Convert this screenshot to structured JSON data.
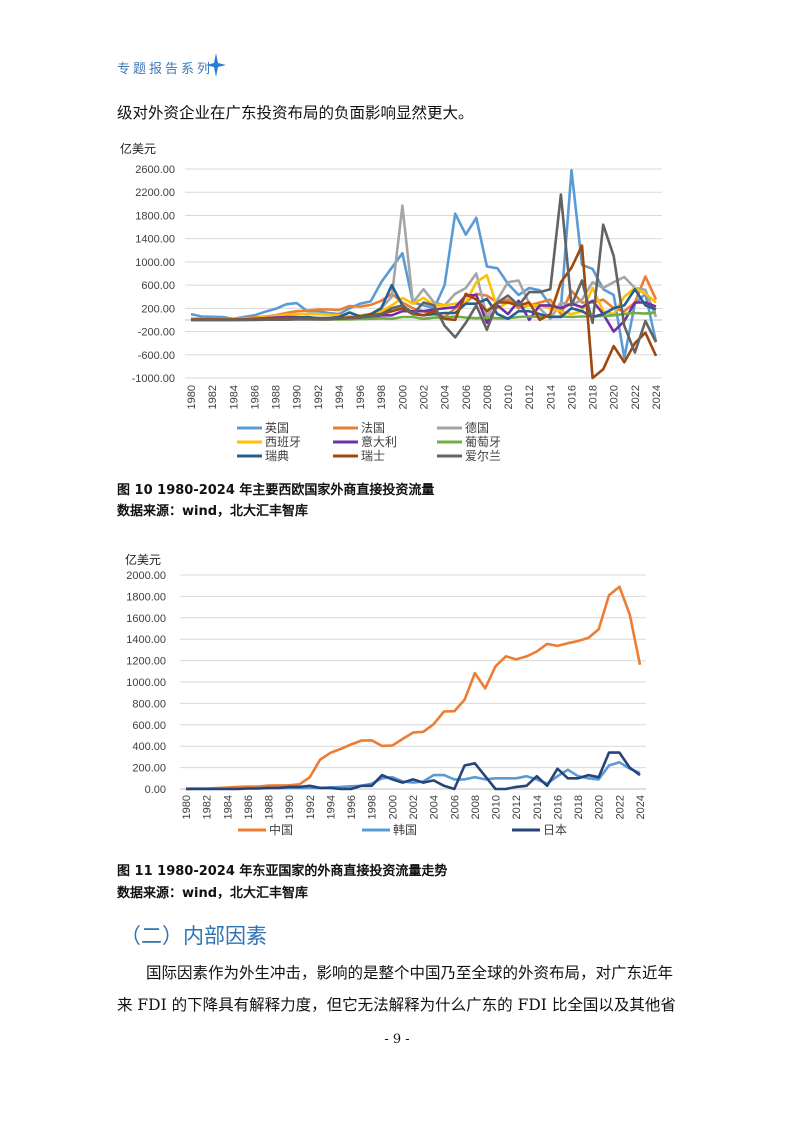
{
  "header": {
    "series_label": "专题报告系列",
    "icon": "four-point-star-icon",
    "color": "#3d7ab8"
  },
  "intro_line": "级对外资企业在广东投资布局的负面影响显然更大。",
  "figure10": {
    "caption": "图 10 1980-2024 年主要西欧国家外商直接投资流量",
    "source": "数据来源：wind，北大汇丰智库"
  },
  "figure11": {
    "caption": "图 11 1980-2024 年东亚国家的外商直接投资流量走势",
    "source": "数据来源：wind，北大汇丰智库"
  },
  "section": {
    "heading": "（二）内部因素",
    "color": "#2e74b5",
    "paragraph_lines": [
      "国际因素作为外生冲击，影响的是整个中国乃至全球的外资布局，对广东近年",
      "来 FDI 的下降具有解释力度，但它无法解释为什么广东的 FDI 比全国以及其他省"
    ]
  },
  "page_number": "- 9 -",
  "chart_data": [
    {
      "type": "line",
      "ylabel": "亿美元",
      "ylim": [
        -1000,
        2600
      ],
      "yticks": [
        "2600.00",
        "2200.00",
        "1800.00",
        "1400.00",
        "1000.00",
        "600.00",
        "200.00",
        "-200.00",
        "-600.00",
        "-1000.00"
      ],
      "ytick_values": [
        2600,
        2200,
        1800,
        1400,
        1000,
        600,
        200,
        -200,
        -600,
        -1000
      ],
      "x": [
        1980,
        1981,
        1982,
        1983,
        1984,
        1985,
        1986,
        1987,
        1988,
        1989,
        1990,
        1991,
        1992,
        1993,
        1994,
        1995,
        1996,
        1997,
        1998,
        1999,
        2000,
        2001,
        2002,
        2003,
        2004,
        2005,
        2006,
        2007,
        2008,
        2009,
        2010,
        2011,
        2012,
        2013,
        2014,
        2015,
        2016,
        2017,
        2018,
        2019,
        2020,
        2021,
        2022,
        2023,
        2024
      ],
      "xtick_labels": [
        "1980",
        "1982",
        "1984",
        "1986",
        "1988",
        "1990",
        "1992",
        "1994",
        "1996",
        "1998",
        "2000",
        "2002",
        "2004",
        "2006",
        "2008",
        "2010",
        "2012",
        "2014",
        "2016",
        "2018",
        "2020",
        "2022",
        "2024"
      ],
      "grid": true,
      "legend_position": "bottom",
      "series": [
        {
          "name": "英国",
          "color": "#5b9bd5",
          "values": [
            100,
            60,
            55,
            50,
            20,
            50,
            80,
            140,
            190,
            270,
            290,
            150,
            150,
            120,
            100,
            200,
            280,
            320,
            650,
            900,
            1150,
            300,
            250,
            200,
            600,
            1830,
            1470,
            1760,
            920,
            890,
            620,
            430,
            550,
            510,
            250,
            200,
            2580,
            950,
            880,
            530,
            430,
            -650,
            280,
            450,
            -380
          ]
        },
        {
          "name": "法国",
          "color": "#ed7d31",
          "values": [
            20,
            20,
            20,
            20,
            20,
            30,
            40,
            60,
            80,
            120,
            150,
            160,
            180,
            180,
            170,
            240,
            230,
            260,
            330,
            450,
            300,
            200,
            150,
            100,
            50,
            200,
            300,
            450,
            420,
            300,
            350,
            200,
            250,
            300,
            350,
            100,
            500,
            300,
            300,
            350,
            200,
            150,
            300,
            750,
            350
          ]
        },
        {
          "name": "德国",
          "color": "#a5a5a5",
          "values": [
            10,
            10,
            10,
            10,
            10,
            10,
            20,
            20,
            30,
            30,
            40,
            40,
            30,
            20,
            30,
            40,
            60,
            100,
            200,
            400,
            1970,
            300,
            530,
            300,
            250,
            450,
            550,
            800,
            50,
            350,
            650,
            680,
            280,
            200,
            20,
            300,
            250,
            350,
            650,
            550,
            650,
            740,
            550,
            520,
            50
          ]
        },
        {
          "name": "西班牙",
          "color": "#ffc000",
          "values": [
            10,
            10,
            10,
            10,
            15,
            20,
            30,
            50,
            70,
            90,
            100,
            100,
            100,
            90,
            80,
            60,
            80,
            100,
            150,
            250,
            380,
            280,
            380,
            250,
            250,
            280,
            300,
            650,
            770,
            200,
            300,
            250,
            250,
            250,
            200,
            150,
            100,
            150,
            550,
            150,
            100,
            400,
            550,
            450,
            300
          ]
        },
        {
          "name": "意大利",
          "color": "#7030a0",
          "values": [
            5,
            5,
            5,
            5,
            5,
            10,
            20,
            30,
            40,
            50,
            50,
            40,
            30,
            30,
            30,
            40,
            40,
            50,
            80,
            80,
            150,
            150,
            150,
            180,
            200,
            220,
            420,
            430,
            -50,
            250,
            100,
            330,
            0,
            250,
            250,
            200,
            280,
            220,
            330,
            100,
            -200,
            -20,
            300,
            300,
            230
          ]
        },
        {
          "name": "葡萄牙",
          "color": "#70ad47",
          "values": [
            0,
            0,
            0,
            0,
            0,
            0,
            5,
            5,
            10,
            10,
            15,
            15,
            10,
            10,
            10,
            10,
            15,
            20,
            30,
            20,
            50,
            50,
            20,
            40,
            40,
            60,
            40,
            30,
            40,
            30,
            30,
            50,
            60,
            50,
            60,
            60,
            50,
            60,
            60,
            70,
            80,
            100,
            120,
            110,
            130
          ]
        },
        {
          "name": "瑞典",
          "color": "#255e91",
          "values": [
            0,
            0,
            0,
            0,
            0,
            5,
            10,
            10,
            20,
            30,
            40,
            50,
            30,
            30,
            50,
            130,
            60,
            100,
            200,
            600,
            250,
            120,
            80,
            100,
            120,
            120,
            280,
            280,
            360,
            100,
            20,
            150,
            150,
            100,
            50,
            50,
            200,
            150,
            50,
            100,
            200,
            250,
            530,
            250,
            180
          ]
        },
        {
          "name": "瑞士",
          "color": "#9e480e",
          "values": [
            10,
            10,
            10,
            10,
            10,
            10,
            15,
            20,
            25,
            30,
            30,
            30,
            30,
            30,
            30,
            40,
            50,
            80,
            100,
            150,
            200,
            100,
            80,
            150,
            20,
            0,
            450,
            350,
            150,
            300,
            300,
            250,
            300,
            0,
            100,
            650,
            900,
            1280,
            -1000,
            -850,
            -450,
            -730,
            -400,
            -220,
            -620
          ]
        },
        {
          "name": "爱尔兰",
          "color": "#636363",
          "values": [
            0,
            0,
            0,
            0,
            0,
            0,
            0,
            5,
            5,
            5,
            10,
            10,
            10,
            10,
            20,
            30,
            40,
            60,
            100,
            200,
            250,
            100,
            300,
            250,
            -100,
            -300,
            -50,
            250,
            -170,
            300,
            420,
            250,
            480,
            480,
            530,
            2160,
            250,
            680,
            -50,
            1640,
            1100,
            -100,
            -560,
            -20,
            -380
          ]
        }
      ]
    },
    {
      "type": "line",
      "ylabel": "亿美元",
      "ylim": [
        0,
        2000
      ],
      "yticks": [
        "2000.00",
        "1800.00",
        "1600.00",
        "1400.00",
        "1200.00",
        "1000.00",
        "800.00",
        "600.00",
        "400.00",
        "200.00",
        "0.00"
      ],
      "ytick_values": [
        2000,
        1800,
        1600,
        1400,
        1200,
        1000,
        800,
        600,
        400,
        200,
        0
      ],
      "x": [
        1980,
        1981,
        1982,
        1983,
        1984,
        1985,
        1986,
        1987,
        1988,
        1989,
        1990,
        1991,
        1992,
        1993,
        1994,
        1995,
        1996,
        1997,
        1998,
        1999,
        2000,
        2001,
        2002,
        2003,
        2004,
        2005,
        2006,
        2007,
        2008,
        2009,
        2010,
        2011,
        2012,
        2013,
        2014,
        2015,
        2016,
        2017,
        2018,
        2019,
        2020,
        2021,
        2022,
        2023,
        2024
      ],
      "xtick_labels": [
        "1980",
        "1982",
        "1984",
        "1986",
        "1988",
        "1990",
        "1992",
        "1994",
        "1996",
        "1998",
        "2000",
        "2002",
        "2004",
        "2006",
        "2008",
        "2010",
        "2012",
        "2014",
        "2016",
        "2018",
        "2020",
        "2022",
        "2024"
      ],
      "grid": true,
      "legend_position": "bottom",
      "series": [
        {
          "name": "中国",
          "color": "#ed7d31",
          "values": [
            0,
            3,
            5,
            9,
            14,
            20,
            22,
            23,
            32,
            34,
            35,
            44,
            110,
            275,
            338,
            375,
            417,
            452,
            455,
            403,
            407,
            468,
            527,
            535,
            606,
            724,
            727,
            835,
            1083,
            940,
            1147,
            1240,
            1211,
            1239,
            1285,
            1356,
            1337,
            1363,
            1383,
            1412,
            1493,
            1810,
            1891,
            1633,
            1162
          ]
        },
        {
          "name": "韩国",
          "color": "#5b9bd5",
          "values": [
            5,
            5,
            5,
            5,
            5,
            5,
            5,
            8,
            10,
            10,
            10,
            10,
            10,
            10,
            15,
            20,
            25,
            30,
            50,
            100,
            110,
            70,
            60,
            70,
            130,
            130,
            90,
            90,
            110,
            90,
            100,
            100,
            100,
            120,
            90,
            50,
            120,
            180,
            120,
            100,
            90,
            220,
            250,
            190,
            150
          ]
        },
        {
          "name": "日本",
          "color": "#264478",
          "values": [
            0,
            0,
            0,
            0,
            0,
            0,
            5,
            5,
            10,
            10,
            20,
            20,
            30,
            10,
            10,
            0,
            0,
            30,
            30,
            130,
            90,
            60,
            90,
            60,
            80,
            30,
            0,
            220,
            240,
            120,
            0,
            0,
            20,
            30,
            120,
            30,
            190,
            100,
            100,
            130,
            110,
            340,
            340,
            200,
            130
          ]
        }
      ]
    }
  ]
}
